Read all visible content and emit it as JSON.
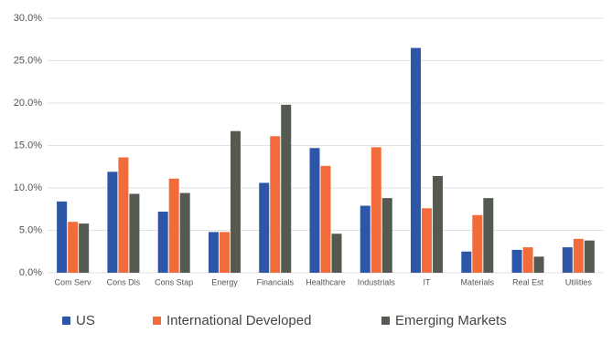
{
  "chart_data": {
    "type": "bar",
    "categories": [
      "Com Serv",
      "Cons Dis",
      "Cons Stap",
      "Energy",
      "Financials",
      "Healthcare",
      "Industrials",
      "IT",
      "Materials",
      "Real Est",
      "Utilities"
    ],
    "series": [
      {
        "name": "US",
        "color": "#2d55a8",
        "values": [
          8.4,
          11.9,
          7.2,
          4.8,
          10.6,
          14.7,
          7.9,
          26.5,
          2.5,
          2.7,
          3.0
        ]
      },
      {
        "name": "International Developed",
        "color": "#f26c3b",
        "values": [
          6.0,
          13.6,
          11.1,
          4.8,
          16.1,
          12.6,
          14.8,
          7.6,
          6.8,
          3.0,
          4.0
        ]
      },
      {
        "name": "Emerging Markets",
        "color": "#555a51",
        "values": [
          5.8,
          9.3,
          9.4,
          16.7,
          19.8,
          4.6,
          8.8,
          11.4,
          8.8,
          1.9,
          3.8
        ]
      }
    ],
    "ylim": [
      0,
      30
    ],
    "yticks": [
      {
        "value": 0,
        "label": "0.0%"
      },
      {
        "value": 5,
        "label": "5.0%"
      },
      {
        "value": 10,
        "label": "10.0%"
      },
      {
        "value": 15,
        "label": "15.0%"
      },
      {
        "value": 20,
        "label": "20.0%"
      },
      {
        "value": 25,
        "label": "25.0%"
      },
      {
        "value": 30,
        "label": "30.0%"
      }
    ],
    "grid": true
  }
}
